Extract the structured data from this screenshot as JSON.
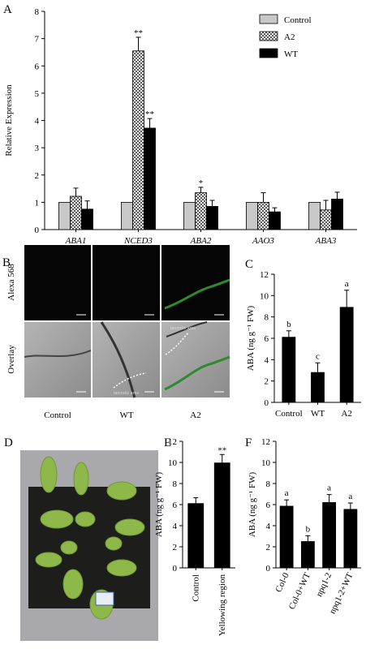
{
  "chart_data": [
    {
      "panel": "A",
      "type": "bar",
      "ylabel": "Relative Expression",
      "categories": [
        "ABA1",
        "NCED3",
        "ABA2",
        "AAO3",
        "ABA3"
      ],
      "series": [
        {
          "name": "Control",
          "color": "#c8c8c8",
          "values": [
            1,
            1,
            1,
            1,
            1
          ]
        },
        {
          "name": "A2",
          "color": "#ffffff",
          "hatch": "crosshatch",
          "values": [
            1.22,
            6.55,
            1.35,
            1.0,
            0.72
          ],
          "errors": [
            0.3,
            0.5,
            0.2,
            0.35,
            0.35
          ],
          "significance": [
            null,
            "**",
            "*",
            null,
            null
          ]
        },
        {
          "name": "WT",
          "color": "#000000",
          "values": [
            0.75,
            3.72,
            0.85,
            0.65,
            1.12
          ],
          "errors": [
            0.3,
            0.35,
            0.22,
            0.15,
            0.25
          ],
          "significance": [
            null,
            "**",
            null,
            null,
            null
          ]
        }
      ],
      "ylim": [
        0,
        8
      ],
      "yticks": [
        0,
        1,
        2,
        3,
        4,
        5,
        6,
        7,
        8
      ],
      "legend": "upper right"
    },
    {
      "panel": "C",
      "type": "bar",
      "ylabel": "ABA (ng g⁻¹ FW)",
      "categories": [
        "Control",
        "WT",
        "A2"
      ],
      "values": [
        6.1,
        2.8,
        8.9
      ],
      "errors": [
        0.6,
        0.9,
        1.6
      ],
      "letters": [
        "b",
        "c",
        "a"
      ],
      "color": "#000000",
      "ylim": [
        0,
        12
      ],
      "yticks": [
        0,
        2,
        4,
        6,
        8,
        10,
        12
      ]
    },
    {
      "panel": "E",
      "type": "bar",
      "ylabel": "ABA (ng g⁻¹ FW)",
      "categories": [
        "Control",
        "Yellowing region"
      ],
      "values": [
        6.1,
        9.95
      ],
      "errors": [
        0.55,
        0.8
      ],
      "significance": [
        null,
        "**"
      ],
      "color": "#000000",
      "ylim": [
        0,
        12
      ],
      "yticks": [
        0,
        2,
        4,
        6,
        8,
        10,
        12
      ]
    },
    {
      "panel": "F",
      "type": "bar",
      "ylabel": "ABA (ng g⁻¹ FW)",
      "categories": [
        "Col-0",
        "Col-0+WT",
        "npq1-2",
        "npq1-2+WT"
      ],
      "values": [
        5.85,
        2.5,
        6.2,
        5.55
      ],
      "errors": [
        0.6,
        0.55,
        0.75,
        0.6
      ],
      "letters": [
        "a",
        "b",
        "a",
        "a"
      ],
      "color": "#000000",
      "ylim": [
        0,
        12
      ],
      "yticks": [
        0,
        2,
        4,
        6,
        8,
        10,
        12
      ]
    }
  ],
  "images": {
    "panel": "B",
    "row_labels": [
      "Alexa 568",
      "Overlay"
    ],
    "column_labels": [
      "Control",
      "WT",
      "A2"
    ],
    "annotations": [
      "necrotic area",
      "necrotic area"
    ]
  },
  "photo": {
    "panel": "D"
  }
}
